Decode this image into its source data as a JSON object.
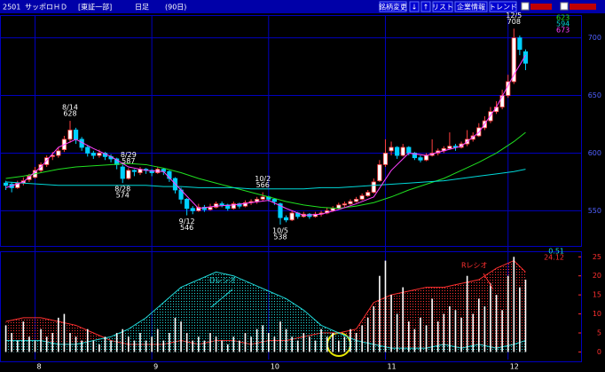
{
  "header": {
    "code": "2501",
    "name": "サッポロＨＤ",
    "market": "[東証一部]",
    "period": "日足",
    "span": "(90日)",
    "buttons": [
      "銘柄変更",
      "↓",
      "↑",
      "リスト",
      "企業情報",
      "トレンド"
    ]
  },
  "chart_data": [
    {
      "type": "candlestick",
      "up_color": "#ff4040",
      "down_color": "#00d0ff",
      "xlim": [
        -1,
        98.5
      ],
      "ylim": [
        521,
        719
      ],
      "yticks": [
        550,
        600,
        650,
        700
      ],
      "grid": true,
      "xticks": [
        {
          "value": 5,
          "label": "8"
        },
        {
          "value": 25,
          "label": "9"
        },
        {
          "value": 45,
          "label": "10"
        },
        {
          "value": 65,
          "label": "11"
        },
        {
          "value": 86,
          "label": "12"
        }
      ],
      "candles": [
        [
          574,
          576,
          568,
          572
        ],
        [
          573,
          575,
          566,
          570
        ],
        [
          570,
          576,
          569,
          574
        ],
        [
          574,
          579,
          572,
          576
        ],
        [
          577,
          582,
          575,
          580
        ],
        [
          579,
          588,
          578,
          585
        ],
        [
          585,
          592,
          583,
          590
        ],
        [
          590,
          598,
          588,
          596
        ],
        [
          597,
          601,
          594,
          598
        ],
        [
          598,
          605,
          596,
          602
        ],
        [
          603,
          615,
          601,
          612
        ],
        [
          612,
          628,
          609,
          620
        ],
        [
          620,
          622,
          608,
          612
        ],
        [
          612,
          614,
          602,
          605
        ],
        [
          605,
          607,
          597,
          600
        ],
        [
          600,
          602,
          595,
          598
        ],
        [
          598,
          603,
          596,
          600
        ],
        [
          600,
          601,
          594,
          597
        ],
        [
          597,
          599,
          592,
          595
        ],
        [
          595,
          596,
          586,
          590
        ],
        [
          588,
          590,
          574,
          578
        ],
        [
          578,
          587,
          577,
          585
        ],
        [
          585,
          586,
          580,
          584
        ],
        [
          583,
          588,
          581,
          586
        ],
        [
          586,
          587,
          582,
          585
        ],
        [
          585,
          586,
          580,
          583
        ],
        [
          583,
          588,
          582,
          586
        ],
        [
          586,
          587,
          581,
          584
        ],
        [
          584,
          585,
          575,
          578
        ],
        [
          578,
          579,
          565,
          568
        ],
        [
          568,
          570,
          556,
          560
        ],
        [
          560,
          561,
          546,
          552
        ],
        [
          552,
          554,
          547,
          550
        ],
        [
          550,
          556,
          549,
          553
        ],
        [
          553,
          555,
          549,
          551
        ],
        [
          551,
          556,
          550,
          553
        ],
        [
          553,
          558,
          552,
          556
        ],
        [
          556,
          558,
          553,
          555
        ],
        [
          555,
          556,
          550,
          552
        ],
        [
          552,
          558,
          551,
          556
        ],
        [
          556,
          557,
          552,
          554
        ],
        [
          554,
          559,
          553,
          557
        ],
        [
          557,
          560,
          555,
          558
        ],
        [
          558,
          562,
          556,
          560
        ],
        [
          560,
          566,
          558,
          562
        ],
        [
          562,
          563,
          558,
          560
        ],
        [
          560,
          561,
          555,
          558
        ],
        [
          556,
          557,
          538,
          544
        ],
        [
          544,
          546,
          540,
          542
        ],
        [
          542,
          550,
          541,
          548
        ],
        [
          548,
          549,
          543,
          545
        ],
        [
          545,
          549,
          544,
          547
        ],
        [
          547,
          548,
          543,
          545
        ],
        [
          545,
          549,
          544,
          547
        ],
        [
          547,
          550,
          545,
          548
        ],
        [
          548,
          553,
          547,
          550
        ],
        [
          550,
          554,
          549,
          552
        ],
        [
          552,
          557,
          551,
          555
        ],
        [
          555,
          558,
          553,
          556
        ],
        [
          556,
          560,
          555,
          558
        ],
        [
          558,
          562,
          557,
          560
        ],
        [
          560,
          565,
          559,
          563
        ],
        [
          563,
          568,
          562,
          566
        ],
        [
          566,
          578,
          565,
          575
        ],
        [
          576,
          594,
          575,
          590
        ],
        [
          590,
          612,
          588,
          600
        ],
        [
          602,
          610,
          598,
          605
        ],
        [
          605,
          606,
          595,
          598
        ],
        [
          598,
          608,
          597,
          605
        ],
        [
          605,
          606,
          598,
          600
        ],
        [
          600,
          601,
          594,
          596
        ],
        [
          596,
          598,
          592,
          594
        ],
        [
          594,
          600,
          593,
          598
        ],
        [
          598,
          612,
          597,
          600
        ],
        [
          600,
          604,
          598,
          602
        ],
        [
          602,
          606,
          600,
          604
        ],
        [
          604,
          618,
          603,
          606
        ],
        [
          606,
          608,
          602,
          605
        ],
        [
          605,
          610,
          604,
          608
        ],
        [
          608,
          620,
          606,
          612
        ],
        [
          612,
          618,
          610,
          615
        ],
        [
          615,
          626,
          614,
          622
        ],
        [
          622,
          632,
          620,
          628
        ],
        [
          628,
          640,
          626,
          636
        ],
        [
          636,
          645,
          634,
          640
        ],
        [
          640,
          655,
          638,
          650
        ],
        [
          650,
          668,
          648,
          662
        ],
        [
          662,
          708,
          660,
          700
        ],
        [
          700,
          702,
          685,
          690
        ],
        [
          688,
          690,
          672,
          678
        ]
      ],
      "ma_x": [
        0,
        3,
        6,
        9,
        12,
        15,
        18,
        21,
        24,
        27,
        30,
        33,
        36,
        39,
        42,
        45,
        48,
        51,
        54,
        57,
        60,
        63,
        66,
        69,
        72,
        75,
        78,
        81,
        84,
        87,
        89
      ],
      "series": [
        {
          "color": "#20e020",
          "current": 623,
          "values": [
            578,
            580,
            583,
            586,
            588,
            589,
            590,
            591,
            590,
            587,
            583,
            578,
            574,
            570,
            566,
            562,
            558,
            555,
            553,
            552,
            554,
            557,
            562,
            568,
            573,
            578,
            585,
            592,
            600,
            610,
            618
          ]
        },
        {
          "color": "#00d8d8",
          "current": 594,
          "values": [
            575,
            574,
            573,
            572,
            572,
            572,
            572,
            572,
            572,
            571,
            571,
            570,
            570,
            570,
            569,
            569,
            569,
            569,
            570,
            570,
            571,
            572,
            573,
            574,
            575,
            576,
            578,
            580,
            582,
            584,
            586
          ]
        },
        {
          "color": "#ff40ff",
          "current": 673,
          "values": [
            570,
            575,
            588,
            605,
            612,
            604,
            597,
            588,
            585,
            584,
            568,
            552,
            554,
            555,
            557,
            559,
            552,
            546,
            547,
            551,
            556,
            562,
            585,
            600,
            598,
            602,
            606,
            618,
            640,
            668,
            685
          ]
        }
      ],
      "annotations": [
        {
          "label": "8/14",
          "value": 628,
          "x": 11,
          "position": "above"
        },
        {
          "label": "8/29",
          "value": 587,
          "x": 21,
          "position": "above"
        },
        {
          "label": "8/28",
          "value": 574,
          "x": 20,
          "position": "below"
        },
        {
          "label": "9/12",
          "value": 546,
          "x": 31,
          "position": "below"
        },
        {
          "label": "10/2",
          "value": 566,
          "x": 44,
          "position": "above"
        },
        {
          "label": "10/5",
          "value": 538,
          "x": 47,
          "position": "below"
        },
        {
          "label": "12/5",
          "value": 708,
          "x": 87,
          "position": "above"
        }
      ]
    },
    {
      "type": "volume-ratio",
      "xlim": [
        -1,
        98.5
      ],
      "ylim": [
        -2,
        26
      ],
      "yticks": [
        0,
        5,
        10,
        15,
        20,
        25
      ],
      "volume": {
        "color": "#ffffff",
        "values": [
          7,
          5,
          3,
          8,
          4,
          3,
          6,
          4,
          5,
          9,
          10,
          5,
          4,
          3,
          6,
          3,
          2,
          4,
          3,
          5,
          6,
          4,
          3,
          5,
          3,
          4,
          6,
          3,
          5,
          9,
          8,
          5,
          3,
          4,
          3,
          5,
          4,
          3,
          2,
          4,
          3,
          5,
          4,
          6,
          7,
          5,
          4,
          8,
          6,
          4,
          3,
          5,
          4,
          3,
          6,
          4,
          5,
          3,
          4,
          6,
          5,
          7,
          9,
          12,
          20,
          24,
          15,
          10,
          17,
          8,
          6,
          9,
          7,
          14,
          8,
          10,
          12,
          11,
          9,
          20,
          10,
          14,
          12,
          18,
          15,
          11,
          20,
          25,
          17,
          19
        ]
      },
      "x": [
        0,
        3,
        6,
        9,
        12,
        15,
        18,
        21,
        24,
        27,
        30,
        33,
        36,
        39,
        42,
        45,
        48,
        51,
        54,
        57,
        60,
        63,
        66,
        69,
        72,
        75,
        78,
        81,
        84,
        87,
        89
      ],
      "series": [
        {
          "color": "#ff3030",
          "current": 24.12,
          "values": [
            8,
            9,
            9,
            8,
            7,
            5,
            3,
            2,
            2,
            2,
            3,
            2,
            3,
            3,
            2,
            3,
            3,
            4,
            5,
            5,
            6,
            13,
            15,
            16,
            17,
            17,
            18,
            19,
            22,
            24,
            21
          ]
        },
        {
          "color": "#20d8d8",
          "current": 0.51,
          "values": [
            3,
            3,
            3,
            2,
            2,
            3,
            4,
            6,
            9,
            13,
            17,
            19,
            21,
            20,
            18,
            16,
            14,
            11,
            7,
            5,
            3,
            2,
            1,
            1,
            1,
            2,
            1,
            2,
            1,
            2,
            3
          ]
        }
      ],
      "annotations": [
        {
          "text": "Oレシオ",
          "color": "#20d8d8"
        },
        {
          "text": "Rレシオ",
          "color": "#ff3030"
        }
      ]
    }
  ]
}
